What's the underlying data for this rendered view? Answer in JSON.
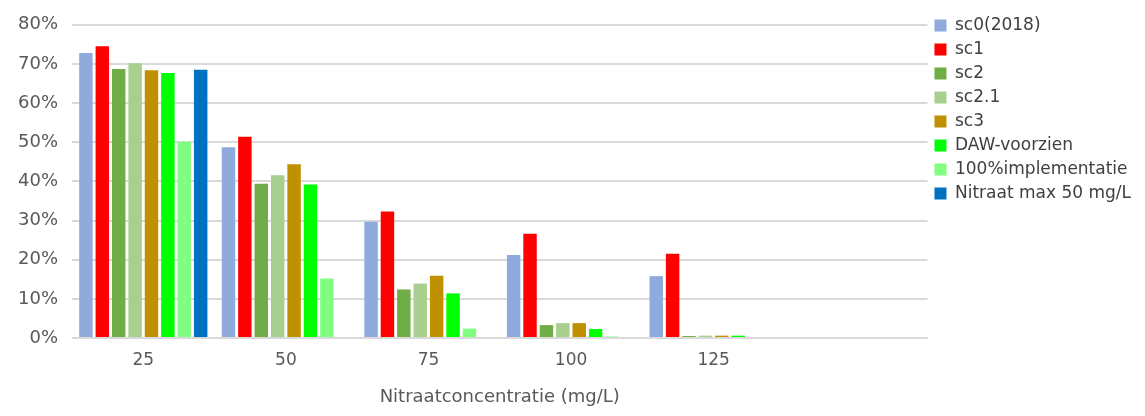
{
  "chart_data": {
    "type": "bar",
    "xlabel": "Nitraatconcentratie (mg/L)",
    "categories": [
      "25",
      "50",
      "75",
      "100",
      "125",
      null
    ],
    "series": [
      {
        "name": "sc0(2018)",
        "color": "#8faadc",
        "values": [
          72.8,
          48.7,
          29.7,
          21.2,
          15.8,
          null
        ]
      },
      {
        "name": "sc1",
        "color": "#ff0000",
        "values": [
          74.5,
          51.4,
          32.3,
          26.6,
          21.5,
          null
        ]
      },
      {
        "name": "sc2",
        "color": "#70ad47",
        "values": [
          68.7,
          39.4,
          12.4,
          3.3,
          0.5,
          null
        ]
      },
      {
        "name": "sc2.1",
        "color": "#a9cf8f",
        "values": [
          70.2,
          41.6,
          13.9,
          3.8,
          0.6,
          null
        ]
      },
      {
        "name": "sc3",
        "color": "#bf9000",
        "values": [
          68.4,
          44.4,
          15.9,
          3.8,
          0.6,
          null
        ]
      },
      {
        "name": "DAW-voorzien",
        "color": "#00ff00",
        "values": [
          67.7,
          39.2,
          11.4,
          2.3,
          0.6,
          null
        ]
      },
      {
        "name": "100%implementatie",
        "color": "#80ff80",
        "values": [
          50.1,
          15.2,
          2.4,
          0.4,
          null,
          null
        ]
      },
      {
        "name": "Nitraat max 50 mg/L",
        "color": "#0070c0",
        "values": [
          68.5,
          null,
          null,
          null,
          null,
          null
        ]
      }
    ],
    "ylim": [
      0,
      80
    ],
    "yticks": [
      {
        "value": 0,
        "label": "0%"
      },
      {
        "value": 10,
        "label": "10%"
      },
      {
        "value": 20,
        "label": "20%"
      },
      {
        "value": 30,
        "label": "30%"
      },
      {
        "value": 40,
        "label": "40%"
      },
      {
        "value": 50,
        "label": "50%"
      },
      {
        "value": 60,
        "label": "60%"
      },
      {
        "value": 70,
        "label": "70%"
      },
      {
        "value": 80,
        "label": "80%"
      }
    ],
    "grid": "y",
    "legend": "top right"
  }
}
